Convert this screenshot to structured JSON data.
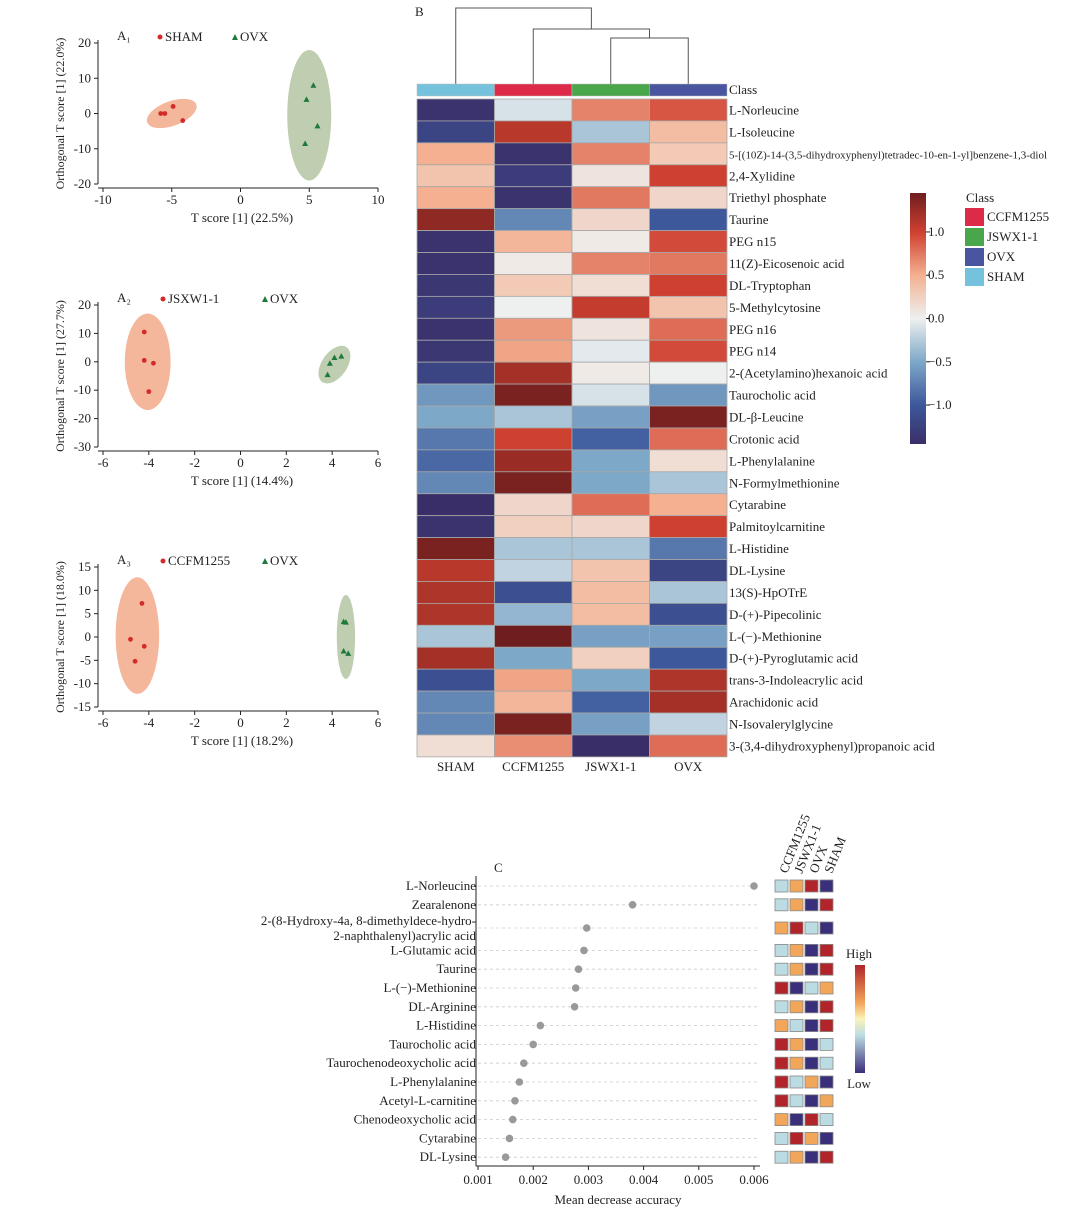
{
  "chart_data": [
    {
      "type": "scatter",
      "panel": "A1",
      "panel_label": "A₁",
      "xlabel": "T score [1] (22.5%)",
      "ylabel": "Orthogonal T score [1] (22.0%)",
      "xlim": [
        -10,
        10
      ],
      "ylim": [
        -20,
        20
      ],
      "xticks": [
        -10,
        -5,
        0,
        5,
        10
      ],
      "yticks": [
        20,
        10,
        0,
        -10,
        -20
      ],
      "series": [
        {
          "name": "SHAM",
          "marker": "circle",
          "color": "#d42a2a",
          "ellipse_color": "#f4b79b",
          "points": [
            [
              -5.8,
              0
            ],
            [
              -5.5,
              0
            ],
            [
              -4.9,
              2
            ],
            [
              -4.2,
              -2
            ]
          ],
          "ellipse": {
            "cx": -5,
            "cy": 0,
            "rx": 1.9,
            "ry": 3.5,
            "angle": -20
          }
        },
        {
          "name": "OVX",
          "marker": "triangle",
          "color": "#1e7a3a",
          "ellipse_color": "#bfcdb0",
          "points": [
            [
              5.3,
              8
            ],
            [
              4.8,
              4
            ],
            [
              5.6,
              -3.5
            ],
            [
              4.7,
              -8.5
            ]
          ],
          "ellipse": {
            "cx": 5,
            "cy": -0.5,
            "rx": 1.6,
            "ry": 18.5,
            "angle": 0
          }
        }
      ]
    },
    {
      "type": "scatter",
      "panel": "A2",
      "panel_label": "A₂",
      "xlabel": "T score [1] (14.4%)",
      "ylabel": "Orthogonal T score [1] (27.7%)",
      "xlim": [
        -6,
        6
      ],
      "ylim": [
        -30,
        20
      ],
      "xticks": [
        -6,
        -4,
        -2,
        0,
        2,
        4,
        6
      ],
      "yticks": [
        20,
        10,
        0,
        -10,
        -20,
        -30
      ],
      "series": [
        {
          "name": "JSXW1-1",
          "marker": "circle",
          "color": "#d42a2a",
          "ellipse_color": "#f4b79b",
          "points": [
            [
              -4.2,
              10.5
            ],
            [
              -4.2,
              0.5
            ],
            [
              -3.8,
              -0.5
            ],
            [
              -4,
              -10.5
            ]
          ],
          "ellipse": {
            "cx": -4.05,
            "cy": 0,
            "rx": 1.0,
            "ry": 17,
            "angle": 0
          }
        },
        {
          "name": "OVX",
          "marker": "triangle",
          "color": "#1e7a3a",
          "ellipse_color": "#bfcdb0",
          "points": [
            [
              4.4,
              2
            ],
            [
              4.1,
              1.5
            ],
            [
              3.9,
              -0.5
            ],
            [
              3.8,
              -4.5
            ]
          ],
          "ellipse": {
            "cx": 4.1,
            "cy": -1,
            "rx": 0.55,
            "ry": 7.5,
            "angle": 35
          }
        }
      ]
    },
    {
      "type": "scatter",
      "panel": "A3",
      "panel_label": "A₃",
      "xlabel": "T score [1] (18.2%)",
      "ylabel": "Orthogonal T score [1] (18.0%)",
      "xlim": [
        -6,
        6
      ],
      "ylim": [
        -15,
        15
      ],
      "xticks": [
        -6,
        -4,
        -2,
        0,
        2,
        4,
        6
      ],
      "yticks": [
        15,
        10,
        5,
        0,
        -5,
        -10,
        -15
      ],
      "series": [
        {
          "name": "CCFM1255",
          "marker": "circle",
          "color": "#d42a2a",
          "ellipse_color": "#f4b79b",
          "points": [
            [
              -4.3,
              7.2
            ],
            [
              -4.8,
              -0.5
            ],
            [
              -4.2,
              -2
            ],
            [
              -4.6,
              -5.2
            ]
          ],
          "ellipse": {
            "cx": -4.5,
            "cy": 0.3,
            "rx": 0.95,
            "ry": 12.5,
            "angle": 0
          }
        },
        {
          "name": "OVX",
          "marker": "triangle",
          "color": "#1e7a3a",
          "ellipse_color": "#bfcdb0",
          "points": [
            [
              4.5,
              3.3
            ],
            [
              4.6,
              3.2
            ],
            [
              4.5,
              -3
            ],
            [
              4.7,
              -3.5
            ]
          ],
          "ellipse": {
            "cx": 4.6,
            "cy": 0,
            "rx": 0.4,
            "ry": 9,
            "angle": 0
          }
        }
      ]
    },
    {
      "type": "heatmap",
      "panel": "B",
      "panel_label": "B",
      "class_header": "Class",
      "columns": [
        "SHAM",
        "CCFM1255",
        "JSWX1-1",
        "OVX"
      ],
      "column_colors": [
        "#74c2dc",
        "#dc2a48",
        "#4aa64a",
        "#4a55a0"
      ],
      "legend_title": "Class",
      "legend": [
        {
          "name": "CCFM1255",
          "color": "#dc2a48"
        },
        {
          "name": "JSWX1-1",
          "color": "#4aa64a"
        },
        {
          "name": "OVX",
          "color": "#4a55a0"
        },
        {
          "name": "SHAM",
          "color": "#74c2dc"
        }
      ],
      "colorbar_ticks": [
        "1.0",
        "0.5",
        "0.0",
        "−0.5",
        "−1.0"
      ],
      "colorbar_tick_values": [
        1.0,
        0.5,
        0.0,
        -0.5,
        -1.0
      ],
      "colorbar_range": [
        -1.45,
        1.45
      ],
      "rows": [
        {
          "label": "L-Norleucine",
          "values": [
            -1.4,
            -0.1,
            0.7,
            0.9
          ]
        },
        {
          "label": "L-Isoleucine",
          "values": [
            -1.2,
            1.1,
            -0.3,
            0.4
          ]
        },
        {
          "label": "5-[(10Z)-14-(3,5-dihydroxyphenyl)tetradec-10-en-1-yl]benzene-1,3-diol",
          "values": [
            0.5,
            -1.4,
            0.7,
            0.3
          ]
        },
        {
          "label": "2,4-Xylidine",
          "values": [
            0.35,
            -1.3,
            0.1,
            1.0
          ]
        },
        {
          "label": "Triethyl phosphate",
          "values": [
            0.5,
            -1.4,
            0.75,
            0.2
          ]
        },
        {
          "label": "Taurine",
          "values": [
            1.3,
            -0.7,
            0.2,
            -1.0
          ]
        },
        {
          "label": "PEG n15",
          "values": [
            -1.4,
            0.45,
            0.05,
            0.95
          ]
        },
        {
          "label": "11(Z)-Eicosenoic acid",
          "values": [
            -1.4,
            0.05,
            0.7,
            0.75
          ]
        },
        {
          "label": "DL-Tryptophan",
          "values": [
            -1.35,
            0.3,
            0.15,
            1.0
          ]
        },
        {
          "label": "5-Methylcytosine",
          "values": [
            -1.3,
            0.0,
            1.05,
            0.35
          ]
        },
        {
          "label": "PEG n16",
          "values": [
            -1.4,
            0.6,
            0.1,
            0.8
          ]
        },
        {
          "label": "PEG n14",
          "values": [
            -1.35,
            0.55,
            -0.05,
            0.95
          ]
        },
        {
          "label": "2-(Acetylamino)hexanoic acid",
          "values": [
            -1.2,
            1.2,
            0.05,
            0.0
          ]
        },
        {
          "label": "Taurocholic acid",
          "values": [
            -0.6,
            1.4,
            -0.1,
            -0.6
          ]
        },
        {
          "label": "DL-β-Leucine",
          "values": [
            -0.5,
            -0.3,
            -0.55,
            1.4
          ]
        },
        {
          "label": "Crotonic acid",
          "values": [
            -0.8,
            1.0,
            -0.95,
            0.8
          ]
        },
        {
          "label": "L-Phenylalanine",
          "values": [
            -0.9,
            1.25,
            -0.5,
            0.15
          ]
        },
        {
          "label": "N-Formylmethionine",
          "values": [
            -0.7,
            1.4,
            -0.5,
            -0.3
          ]
        },
        {
          "label": "Cytarabine",
          "values": [
            -1.45,
            0.2,
            0.8,
            0.5
          ]
        },
        {
          "label": "Palmitoylcarnitine",
          "values": [
            -1.4,
            0.25,
            0.2,
            1.0
          ]
        },
        {
          "label": "L-Histidine",
          "values": [
            1.4,
            -0.3,
            -0.3,
            -0.8
          ]
        },
        {
          "label": "DL-Lysine",
          "values": [
            1.1,
            -0.2,
            0.35,
            -1.2
          ]
        },
        {
          "label": "13(S)-HpOTrE",
          "values": [
            1.15,
            -1.1,
            0.4,
            -0.3
          ]
        },
        {
          "label": "D-(+)-Pipecolinic",
          "values": [
            1.15,
            -0.4,
            0.4,
            -1.1
          ]
        },
        {
          "label": "L-(−)-Methionine",
          "values": [
            -0.3,
            1.45,
            -0.55,
            -0.55
          ]
        },
        {
          "label": "D-(+)-Pyroglutamic acid",
          "values": [
            1.2,
            -0.5,
            0.25,
            -1.0
          ]
        },
        {
          "label": "trans-3-Indoleacrylic acid",
          "values": [
            -1.1,
            0.55,
            -0.5,
            1.15
          ]
        },
        {
          "label": "Arachidonic acid",
          "values": [
            -0.7,
            0.45,
            -0.95,
            1.2
          ]
        },
        {
          "label": "N-Isovalerylglycine",
          "values": [
            -0.7,
            1.4,
            -0.55,
            -0.2
          ]
        },
        {
          "label": "3-(3,4-dihydroxyphenyl)propanoic acid",
          "values": [
            0.15,
            0.65,
            -1.45,
            0.8
          ]
        }
      ]
    },
    {
      "type": "scatter",
      "panel": "C",
      "panel_label": "C",
      "xlabel": "Mean decrease accuracy",
      "xlim": [
        0.001,
        0.006
      ],
      "xticks": [
        "0.001",
        "0.002",
        "0.003",
        "0.004",
        "0.005",
        "0.006"
      ],
      "group_columns": [
        "CCFM1255",
        "JSWX1-1",
        "OVX",
        "SHAM"
      ],
      "level_colors": {
        "low": "#3a2f7a",
        "midlow": "#bcdce3",
        "midhigh": "#f2a65a",
        "high": "#b0242a"
      },
      "colorbar_high": "High",
      "colorbar_low": "Low",
      "rows": [
        {
          "label": [
            "L-Norleucine"
          ],
          "value": 0.006,
          "levels": [
            "midlow",
            "midhigh",
            "high",
            "low"
          ]
        },
        {
          "label": [
            "Zearalenone"
          ],
          "value": 0.0038,
          "levels": [
            "midlow",
            "midhigh",
            "low",
            "high"
          ]
        },
        {
          "label": [
            "2-(8-Hydroxy-4a, 8-dimethyldece-hydro-",
            "2-naphthalenyl)acrylic acid"
          ],
          "value": 0.00297,
          "levels": [
            "midhigh",
            "high",
            "midlow",
            "low"
          ]
        },
        {
          "label": [
            "L-Glutamic acid"
          ],
          "value": 0.00292,
          "levels": [
            "midlow",
            "midhigh",
            "low",
            "high"
          ]
        },
        {
          "label": [
            "Taurine"
          ],
          "value": 0.00282,
          "levels": [
            "midlow",
            "midhigh",
            "low",
            "high"
          ]
        },
        {
          "label": [
            "L-(−)-Methionine"
          ],
          "value": 0.00277,
          "levels": [
            "high",
            "low",
            "midlow",
            "midhigh"
          ]
        },
        {
          "label": [
            "DL-Arginine"
          ],
          "value": 0.00275,
          "levels": [
            "midlow",
            "midhigh",
            "low",
            "high"
          ]
        },
        {
          "label": [
            "L-Histidine"
          ],
          "value": 0.00213,
          "levels": [
            "midhigh",
            "midlow",
            "low",
            "high"
          ]
        },
        {
          "label": [
            "Taurocholic acid"
          ],
          "value": 0.002,
          "levels": [
            "high",
            "midhigh",
            "low",
            "midlow"
          ]
        },
        {
          "label": [
            "Taurochenodeoxycholic acid"
          ],
          "value": 0.00183,
          "levels": [
            "high",
            "midhigh",
            "low",
            "midlow"
          ]
        },
        {
          "label": [
            "L-Phenylalanine"
          ],
          "value": 0.00175,
          "levels": [
            "high",
            "midlow",
            "midhigh",
            "low"
          ]
        },
        {
          "label": [
            "Acetyl-L-carnitine"
          ],
          "value": 0.00167,
          "levels": [
            "high",
            "midlow",
            "low",
            "midhigh"
          ]
        },
        {
          "label": [
            "Chenodeoxycholic acid"
          ],
          "value": 0.00163,
          "levels": [
            "midhigh",
            "low",
            "high",
            "midlow"
          ]
        },
        {
          "label": [
            "Cytarabine"
          ],
          "value": 0.00157,
          "levels": [
            "midlow",
            "high",
            "midhigh",
            "low"
          ]
        },
        {
          "label": [
            "DL-Lysine"
          ],
          "value": 0.0015,
          "levels": [
            "midlow",
            "midhigh",
            "low",
            "high"
          ]
        }
      ]
    }
  ]
}
